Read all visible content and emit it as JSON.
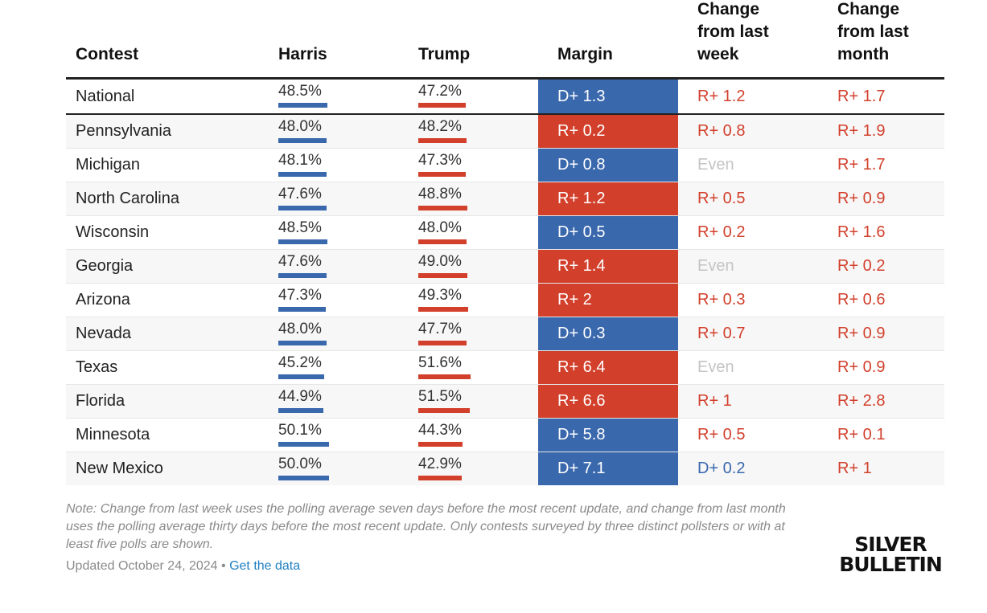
{
  "chart_data": {
    "type": "table",
    "columns": [
      "Contest",
      "Harris",
      "Trump",
      "Margin",
      "Change\nfrom last\nweek",
      "Change\nfrom last\nmonth"
    ],
    "rows": [
      {
        "contest": "National",
        "harris": 48.5,
        "trump": 47.2,
        "harris_label": "48.5%",
        "trump_label": "47.2%",
        "margin_party": "D",
        "margin": "D+ 1.3",
        "week_party": "R",
        "week": "R+ 1.2",
        "month_party": "R",
        "month": "R+ 1.7"
      },
      {
        "contest": "Pennsylvania",
        "harris": 48.0,
        "trump": 48.2,
        "harris_label": "48.0%",
        "trump_label": "48.2%",
        "margin_party": "R",
        "margin": "R+ 0.2",
        "week_party": "R",
        "week": "R+ 0.8",
        "month_party": "R",
        "month": "R+ 1.9"
      },
      {
        "contest": "Michigan",
        "harris": 48.1,
        "trump": 47.3,
        "harris_label": "48.1%",
        "trump_label": "47.3%",
        "margin_party": "D",
        "margin": "D+ 0.8",
        "week_party": "E",
        "week": "Even",
        "month_party": "R",
        "month": "R+ 1.7"
      },
      {
        "contest": "North Carolina",
        "harris": 47.6,
        "trump": 48.8,
        "harris_label": "47.6%",
        "trump_label": "48.8%",
        "margin_party": "R",
        "margin": "R+ 1.2",
        "week_party": "R",
        "week": "R+ 0.5",
        "month_party": "R",
        "month": "R+ 0.9"
      },
      {
        "contest": "Wisconsin",
        "harris": 48.5,
        "trump": 48.0,
        "harris_label": "48.5%",
        "trump_label": "48.0%",
        "margin_party": "D",
        "margin": "D+ 0.5",
        "week_party": "R",
        "week": "R+ 0.2",
        "month_party": "R",
        "month": "R+ 1.6"
      },
      {
        "contest": "Georgia",
        "harris": 47.6,
        "trump": 49.0,
        "harris_label": "47.6%",
        "trump_label": "49.0%",
        "margin_party": "R",
        "margin": "R+ 1.4",
        "week_party": "E",
        "week": "Even",
        "month_party": "R",
        "month": "R+ 0.2"
      },
      {
        "contest": "Arizona",
        "harris": 47.3,
        "trump": 49.3,
        "harris_label": "47.3%",
        "trump_label": "49.3%",
        "margin_party": "R",
        "margin": "R+ 2",
        "week_party": "R",
        "week": "R+ 0.3",
        "month_party": "R",
        "month": "R+ 0.6"
      },
      {
        "contest": "Nevada",
        "harris": 48.0,
        "trump": 47.7,
        "harris_label": "48.0%",
        "trump_label": "47.7%",
        "margin_party": "D",
        "margin": "D+ 0.3",
        "week_party": "R",
        "week": "R+ 0.7",
        "month_party": "R",
        "month": "R+ 0.9"
      },
      {
        "contest": "Texas",
        "harris": 45.2,
        "trump": 51.6,
        "harris_label": "45.2%",
        "trump_label": "51.6%",
        "margin_party": "R",
        "margin": "R+ 6.4",
        "week_party": "E",
        "week": "Even",
        "month_party": "R",
        "month": "R+ 0.9"
      },
      {
        "contest": "Florida",
        "harris": 44.9,
        "trump": 51.5,
        "harris_label": "44.9%",
        "trump_label": "51.5%",
        "margin_party": "R",
        "margin": "R+ 6.6",
        "week_party": "R",
        "week": "R+ 1",
        "month_party": "R",
        "month": "R+ 2.8"
      },
      {
        "contest": "Minnesota",
        "harris": 50.1,
        "trump": 44.3,
        "harris_label": "50.1%",
        "trump_label": "44.3%",
        "margin_party": "D",
        "margin": "D+ 5.8",
        "week_party": "R",
        "week": "R+ 0.5",
        "month_party": "R",
        "month": "R+ 0.1"
      },
      {
        "contest": "New Mexico",
        "harris": 50.0,
        "trump": 42.9,
        "harris_label": "50.0%",
        "trump_label": "42.9%",
        "margin_party": "D",
        "margin": "D+ 7.1",
        "week_party": "D",
        "week": "D+ 0.2",
        "month_party": "R",
        "month": "R+ 1"
      }
    ],
    "colors": {
      "harris": "#3a68ad",
      "trump": "#d2402c",
      "even": "#c4c4c4"
    }
  },
  "footer": {
    "note": "Note: Change from last week uses the polling average seven days before the most recent update, and change from last month uses the polling average thirty days before the most recent update. Only contests surveyed by three distinct pollsters or with at least five polls are shown.",
    "updated": "Updated October 24, 2024",
    "separator": " • ",
    "link": "Get the data"
  },
  "logo": {
    "line1": "SILVER",
    "line2": "BULLETIN"
  }
}
